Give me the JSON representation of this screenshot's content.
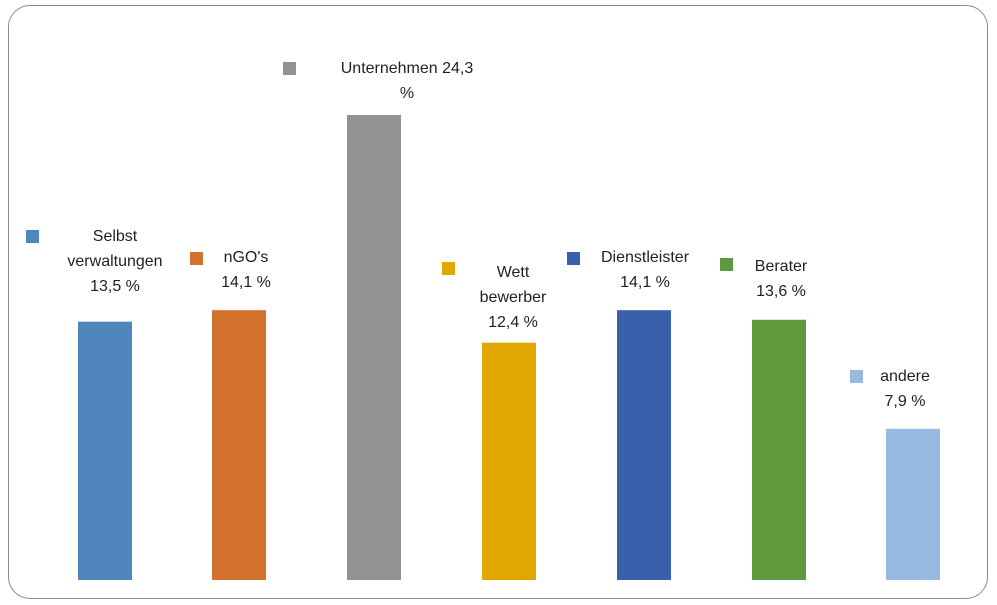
{
  "chart_data": {
    "type": "bar",
    "title": "",
    "xlabel": "",
    "ylabel": "",
    "ylim": [
      0,
      30
    ],
    "grid": false,
    "legend": "inline labels above each bar",
    "categories": [
      "Selbst verwaltungen",
      "nGO's",
      "Unternehmen",
      "Wett bewerber",
      "Dienstleister",
      "Berater",
      "andere"
    ],
    "values": [
      13.5,
      14.1,
      24.3,
      12.4,
      14.1,
      13.6,
      7.9
    ],
    "colors": [
      "#4f87bd",
      "#d2702d",
      "#929292",
      "#e1a600",
      "#3a60ab",
      "#5f9a3e",
      "#98b9e0"
    ],
    "labels": [
      [
        "Selbst",
        "verwaltungen",
        "13,5 %"
      ],
      [
        "nGO's",
        "14,1 %"
      ],
      [
        "Unternehmen 24,3",
        "%"
      ],
      [
        "Wett",
        "bewerber",
        "12,4 %"
      ],
      [
        "Dienstleister",
        "14,1 %"
      ],
      [
        "Berater",
        "13,6 %"
      ],
      [
        "andere",
        "7,9 %"
      ]
    ]
  }
}
